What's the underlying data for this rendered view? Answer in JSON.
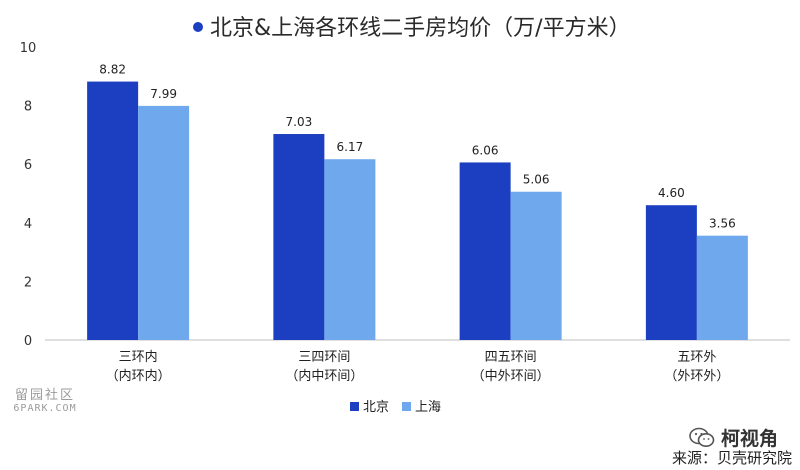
{
  "chart_data": {
    "type": "bar",
    "title": "北京&上海各环线二手房均价（万/平方米）",
    "categories": [
      {
        "line1": "三环内",
        "line2": "（内环内）"
      },
      {
        "line1": "三四环间",
        "line2": "（内中环间）"
      },
      {
        "line1": "四五环间",
        "line2": "（中外环间）"
      },
      {
        "line1": "五环外",
        "line2": "（外环外）"
      }
    ],
    "series": [
      {
        "name": "北京",
        "color": "#1b3fc0",
        "values": [
          8.82,
          7.03,
          6.06,
          4.6
        ],
        "labels": [
          "8.82",
          "7.03",
          "6.06",
          "4.60"
        ]
      },
      {
        "name": "上海",
        "color": "#6fa8ec",
        "values": [
          7.99,
          6.17,
          5.06,
          3.56
        ],
        "labels": [
          "7.99",
          "6.17",
          "5.06",
          "3.56"
        ]
      }
    ],
    "ylim": [
      0,
      10
    ],
    "yticks": [
      0,
      2,
      4,
      6,
      8,
      10
    ],
    "grid": false,
    "legend": "bottom-center",
    "title_marker_color": "#1b3fc0"
  },
  "watermark": {
    "line1": "留园社区",
    "line2": "6PARK.COM"
  },
  "brand": {
    "name": "柯视角",
    "icon": "wechat-icon"
  },
  "source": "来源：贝壳研究院"
}
